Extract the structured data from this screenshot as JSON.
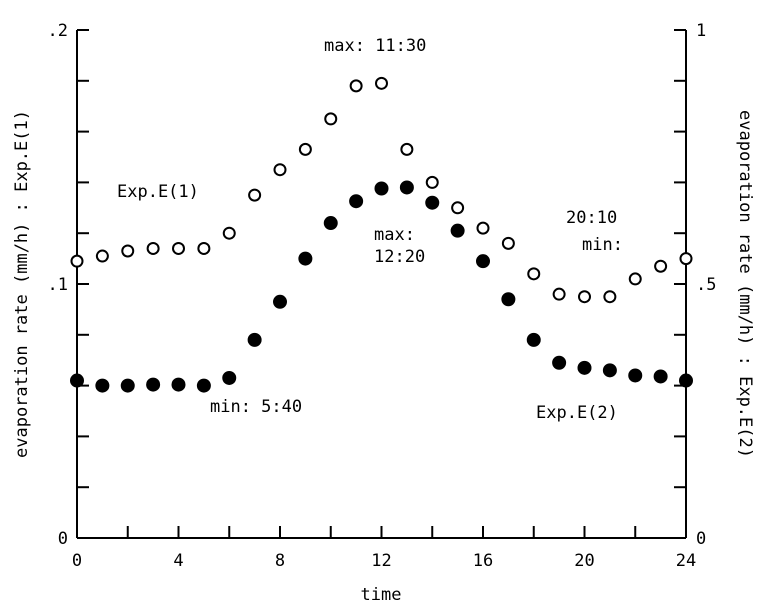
{
  "chart_data": {
    "type": "scatter",
    "xlabel": "time",
    "ylabel_left": "evaporation rate (mm/h) : Exp.E(1)",
    "ylabel_right": "evaporation rate (mm/h) : Exp.E(2)",
    "xlim": [
      0,
      24
    ],
    "ylim_left": [
      0,
      0.2
    ],
    "ylim_right": [
      0,
      1
    ],
    "x_ticks": [
      0,
      4,
      8,
      12,
      16,
      20,
      24
    ],
    "y_left_tick_labels": [
      {
        "value": 0,
        "label": "0"
      },
      {
        "value": 0.1,
        "label": ".1"
      },
      {
        "value": 0.2,
        "label": ".2"
      }
    ],
    "y_right_tick_labels": [
      {
        "value": 0,
        "label": "0"
      },
      {
        "value": 0.5,
        "label": ".5"
      },
      {
        "value": 1,
        "label": "1"
      }
    ],
    "grid": false,
    "series": [
      {
        "name": "Exp.E(1)",
        "marker": "open-circle",
        "axis": "left",
        "x": [
          0,
          1,
          2,
          3,
          4,
          5,
          6,
          7,
          8,
          9,
          10,
          11,
          12,
          13,
          14,
          15,
          16,
          17,
          18,
          19,
          20,
          21,
          22,
          23,
          24
        ],
        "y": [
          0.109,
          0.111,
          0.113,
          0.114,
          0.114,
          0.114,
          0.12,
          0.135,
          0.145,
          0.153,
          0.165,
          0.178,
          0.179,
          0.153,
          0.14,
          0.13,
          0.122,
          0.116,
          0.104,
          0.096,
          0.095,
          0.095,
          0.102,
          0.107,
          0.11
        ]
      },
      {
        "name": "Exp.E(2)",
        "marker": "filled-circle",
        "axis": "right",
        "x": [
          0,
          1,
          2,
          3,
          4,
          5,
          6,
          7,
          8,
          9,
          10,
          11,
          12,
          13,
          14,
          15,
          16,
          17,
          18,
          19,
          20,
          21,
          22,
          23,
          24
        ],
        "y": [
          0.31,
          0.3,
          0.3,
          0.302,
          0.302,
          0.3,
          0.315,
          0.39,
          0.465,
          0.55,
          0.62,
          0.663,
          0.688,
          0.69,
          0.66,
          0.605,
          0.545,
          0.47,
          0.39,
          0.345,
          0.335,
          0.33,
          0.32,
          0.318,
          0.31
        ]
      }
    ],
    "annotations": [
      {
        "text": "max: 11:30"
      },
      {
        "text": "Exp.E(1)"
      },
      {
        "text": "max:"
      },
      {
        "text": "12:20"
      },
      {
        "text": "20:10"
      },
      {
        "text": "min:"
      },
      {
        "text": "min: 5:40"
      },
      {
        "text": "Exp.E(2)"
      }
    ]
  }
}
